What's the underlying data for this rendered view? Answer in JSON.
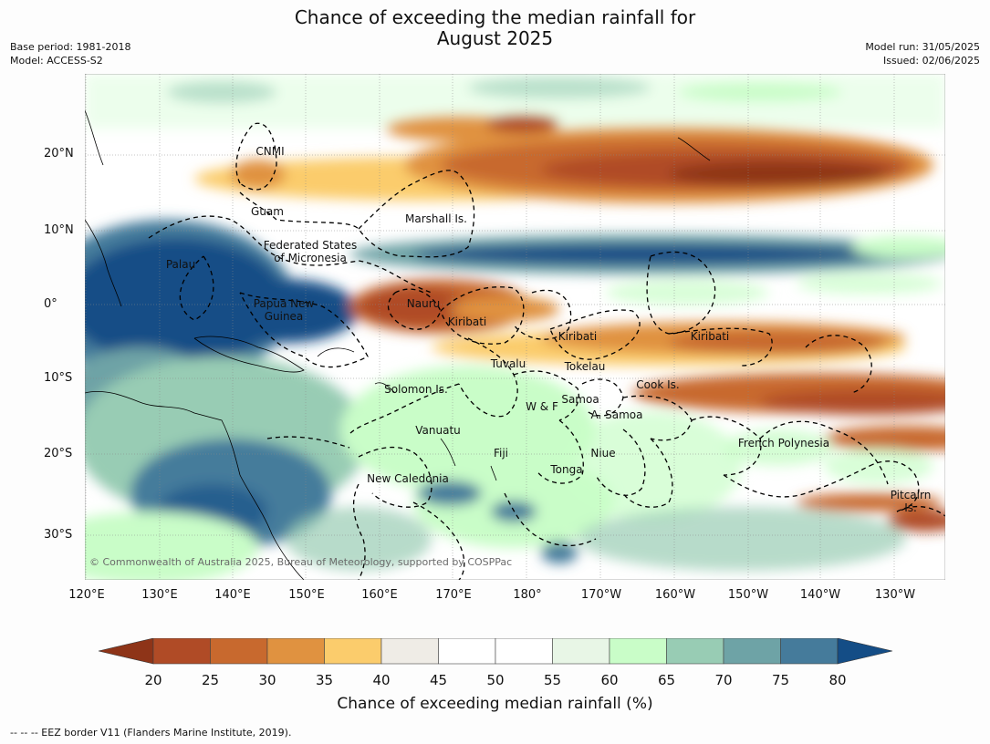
{
  "title_line1": "Chance of exceeding the median rainfall for",
  "title_line2": "August 2025",
  "meta_left": {
    "base_period": "Base period: 1981-2018",
    "model": "Model: ACCESS-S2"
  },
  "meta_right": {
    "model_run": "Model run: 31/05/2025",
    "issued": "Issued: 02/06/2025"
  },
  "copyright": "© Commonwealth of Australia 2025, Bureau of Meteorology, supported by COSPPac",
  "lat_labels": [
    "20°N",
    "10°N",
    "0°",
    "10°S",
    "20°S",
    "30°S"
  ],
  "lon_labels": [
    "120°E",
    "130°E",
    "140°E",
    "150°E",
    "160°E",
    "170°E",
    "180°",
    "170°W",
    "160°W",
    "150°W",
    "140°W",
    "130°W"
  ],
  "places": [
    "CNMI",
    "Guam",
    "Marshall Is.",
    "Federated States\nof Micronesia",
    "Palau",
    "Papua New\nGuinea",
    "Nauru",
    "Kiribati",
    "Kiribati",
    "Kiribati",
    "Tuvalu",
    "Tokelau",
    "Cook Is.",
    "Solomon Is.",
    "Samoa",
    "W & F",
    "A. Samoa",
    "Vanuatu",
    "Fiji",
    "Niue",
    "French Polynesia",
    "Tonga",
    "New Caledonia",
    "Pitcairn\nIs."
  ],
  "colorbar": {
    "title": "Chance of exceeding median rainfall (%)",
    "ticks": [
      "20",
      "25",
      "30",
      "35",
      "40",
      "45",
      "50",
      "55",
      "60",
      "65",
      "70",
      "75",
      "80"
    ],
    "colors": [
      "#8e3418",
      "#b04b26",
      "#c8692e",
      "#e09240",
      "#fbcc6c",
      "#efece6",
      "#ffffff",
      "#ffffff",
      "#e8f6e6",
      "#c9fdc8",
      "#98ccb4",
      "#6ea3a6",
      "#457b9b",
      "#144d86"
    ]
  },
  "footnote": "--  --  -- EEZ border V11 (Flanders Marine Institute, 2019)."
}
